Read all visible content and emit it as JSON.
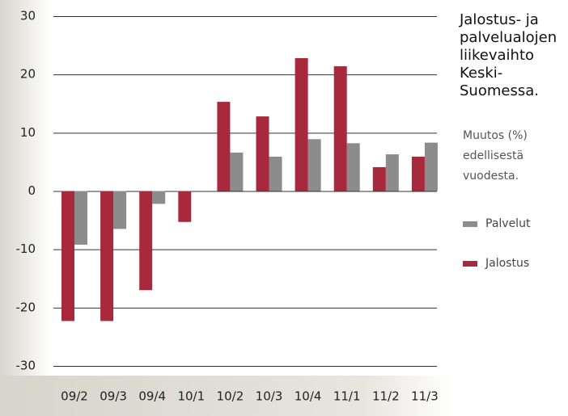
{
  "chart_data": {
    "type": "bar",
    "title": "Jalostus- ja palvelualojen liikevaihto Keski-Suomessa.",
    "subtitle": "Muutos (%) edellisestä vuodesta.",
    "categories": [
      "09/2",
      "09/3",
      "09/4",
      "10/1",
      "10/2",
      "10/3",
      "10/4",
      "11/1",
      "11/2",
      "11/3"
    ],
    "series": [
      {
        "name": "Palvelut",
        "color": "#8c8c8c",
        "values": [
          -9.2,
          -6.5,
          -2.2,
          0,
          6.6,
          5.9,
          8.9,
          8.2,
          6.3,
          8.3
        ]
      },
      {
        "name": "Jalostus",
        "color": "#a8283c",
        "values": [
          -22.3,
          -22.3,
          -17,
          -5.3,
          15.3,
          12.8,
          22.8,
          21.4,
          4.1,
          5.9
        ]
      }
    ],
    "ylim": [
      -30,
      30
    ],
    "yticks": [
      -30,
      -20,
      -10,
      0,
      10,
      20,
      30
    ],
    "grid": true
  }
}
